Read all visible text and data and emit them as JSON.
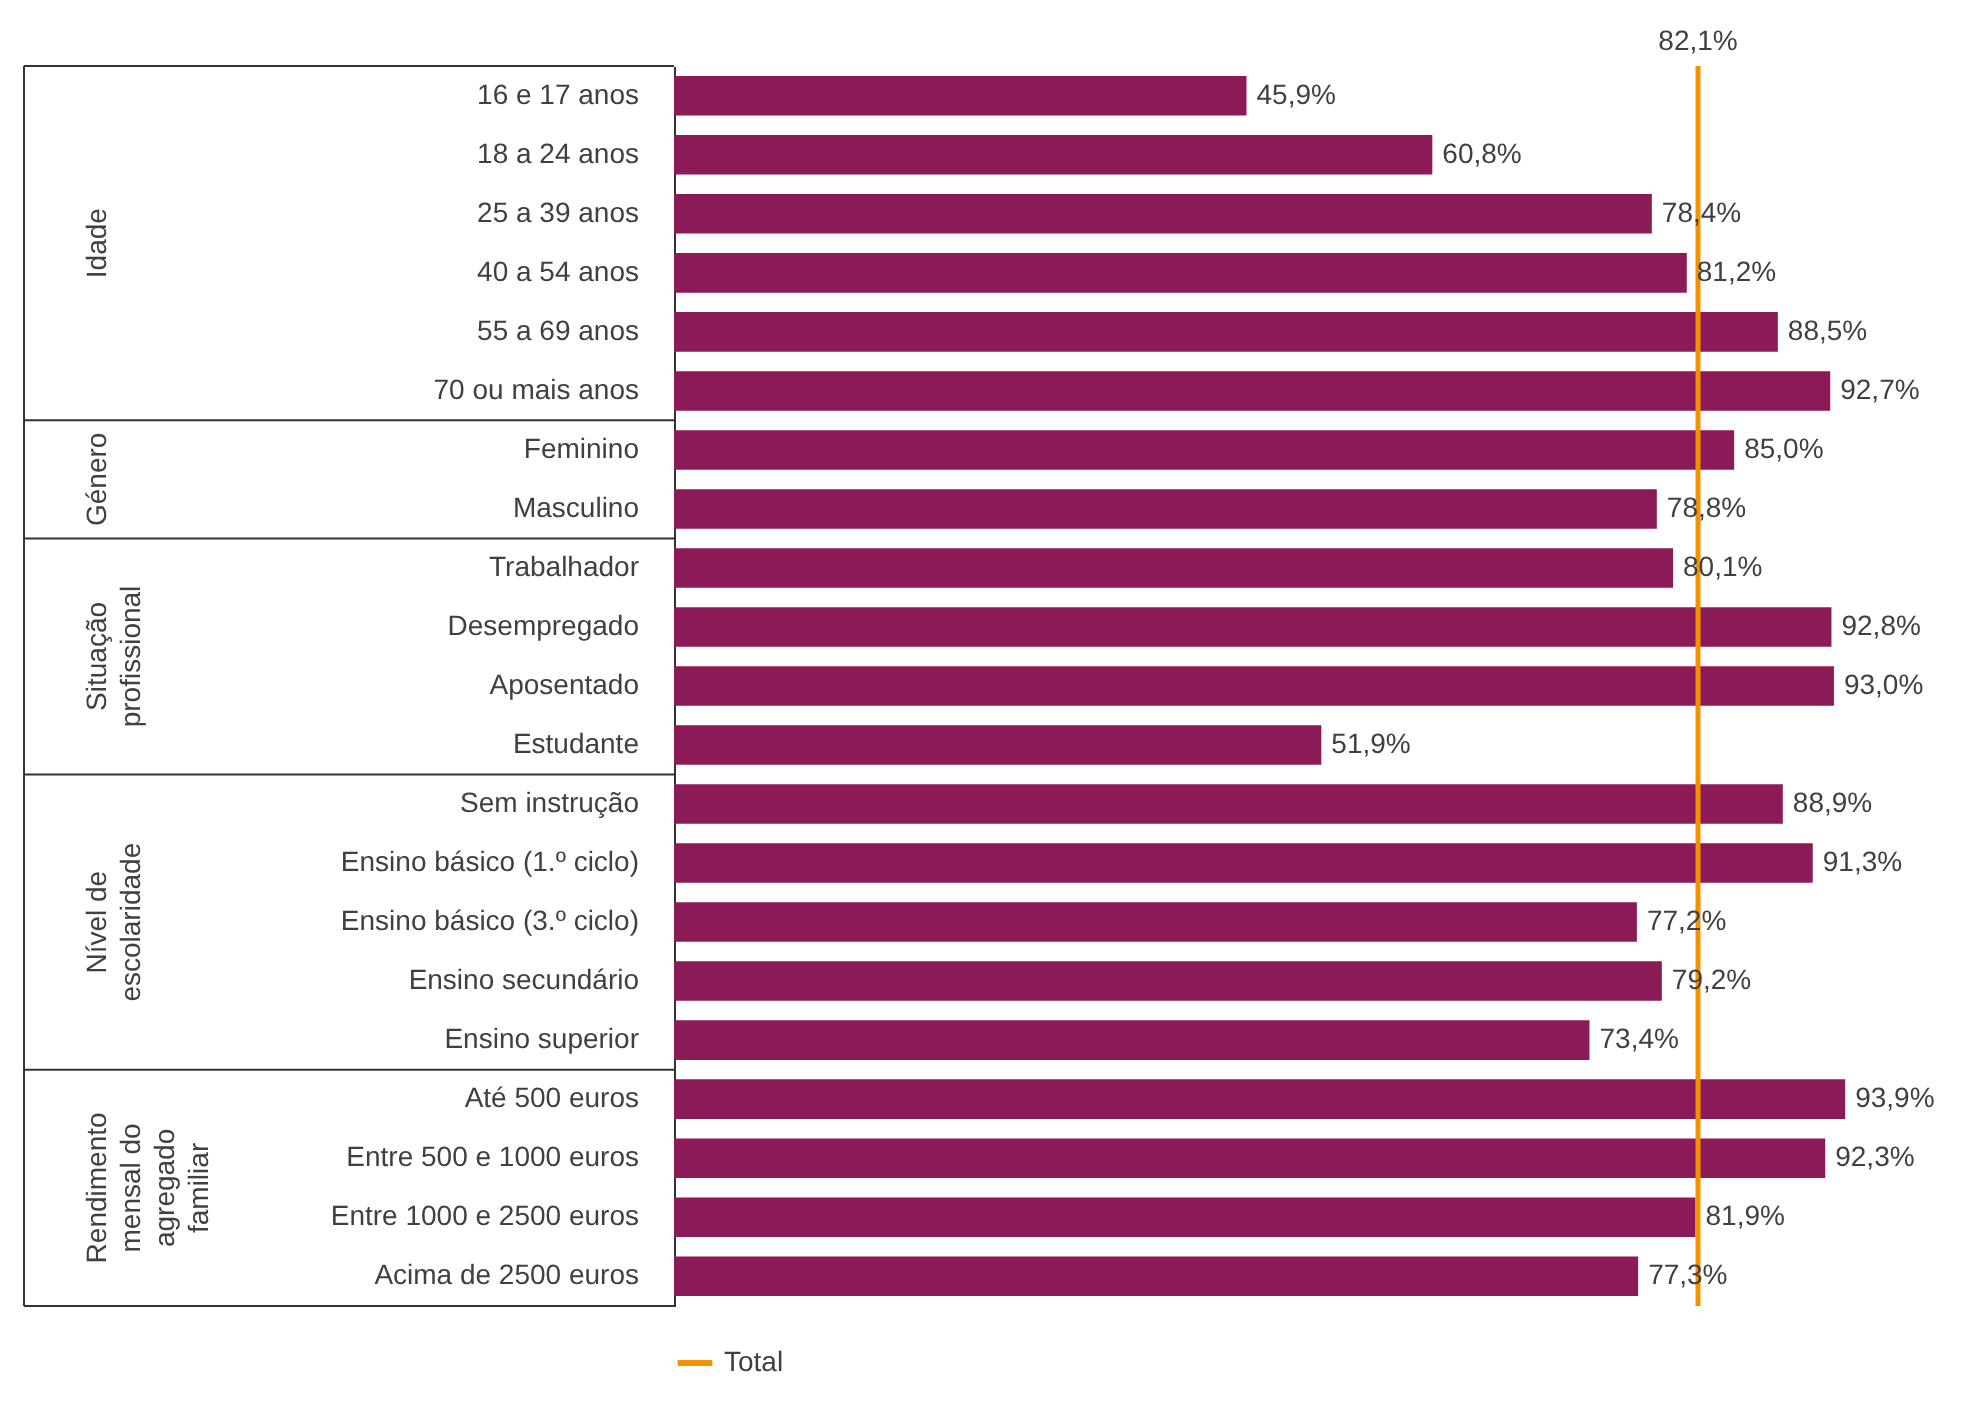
{
  "chart_data": {
    "type": "bar",
    "orientation": "horizontal",
    "tick_labels": "y",
    "legend": "bottom",
    "categories": [
      "16 e 17 anos",
      "18 a 24 anos",
      "25 a 39 anos",
      "40 a 54 anos",
      "55 a 69 anos",
      "70 ou mais anos",
      "Feminino",
      "Masculino",
      "Trabalhador",
      "Desempregado",
      "Aposentado",
      "Estudante",
      "Sem instrução",
      "Ensino básico (1.º ciclo)",
      "Ensino básico (3.º ciclo)",
      "Ensino secundário",
      "Ensino superior",
      "Até 500 euros",
      "Entre 500 e 1000 euros",
      "Entre 1000 e 2500 euros",
      "Acima de 2500 euros"
    ],
    "series": [
      {
        "color": "#8c1a56",
        "values": [
          45.9,
          60.8,
          78.4,
          81.2,
          88.5,
          92.7,
          85.0,
          78.8,
          80.1,
          92.8,
          93.0,
          51.9,
          88.9,
          91.3,
          77.2,
          79.2,
          73.4,
          93.9,
          92.3,
          81.9,
          77.3
        ],
        "value_labels": [
          "45,9%",
          "60,8%",
          "78,4%",
          "81,2%",
          "88,5%",
          "92,7%",
          "85,0%",
          "78,8%",
          "80,1%",
          "92,8%",
          "93,0%",
          "51,9%",
          "88,9%",
          "91,3%",
          "77,2%",
          "79,2%",
          "73,4%",
          "93,9%",
          "92,3%",
          "81,9%",
          "77,3%"
        ]
      }
    ],
    "ref_lines": [
      {
        "axis": "x",
        "value": 82.1,
        "label": "Total",
        "color": "#f39200"
      }
    ],
    "annotations": [
      "82,1%",
      "Idade",
      "Género",
      "Situação\nprofissional",
      "Nível de\nescolaridade",
      "Rendimento\nmensal do\nagregado\nfamiliar"
    ]
  }
}
